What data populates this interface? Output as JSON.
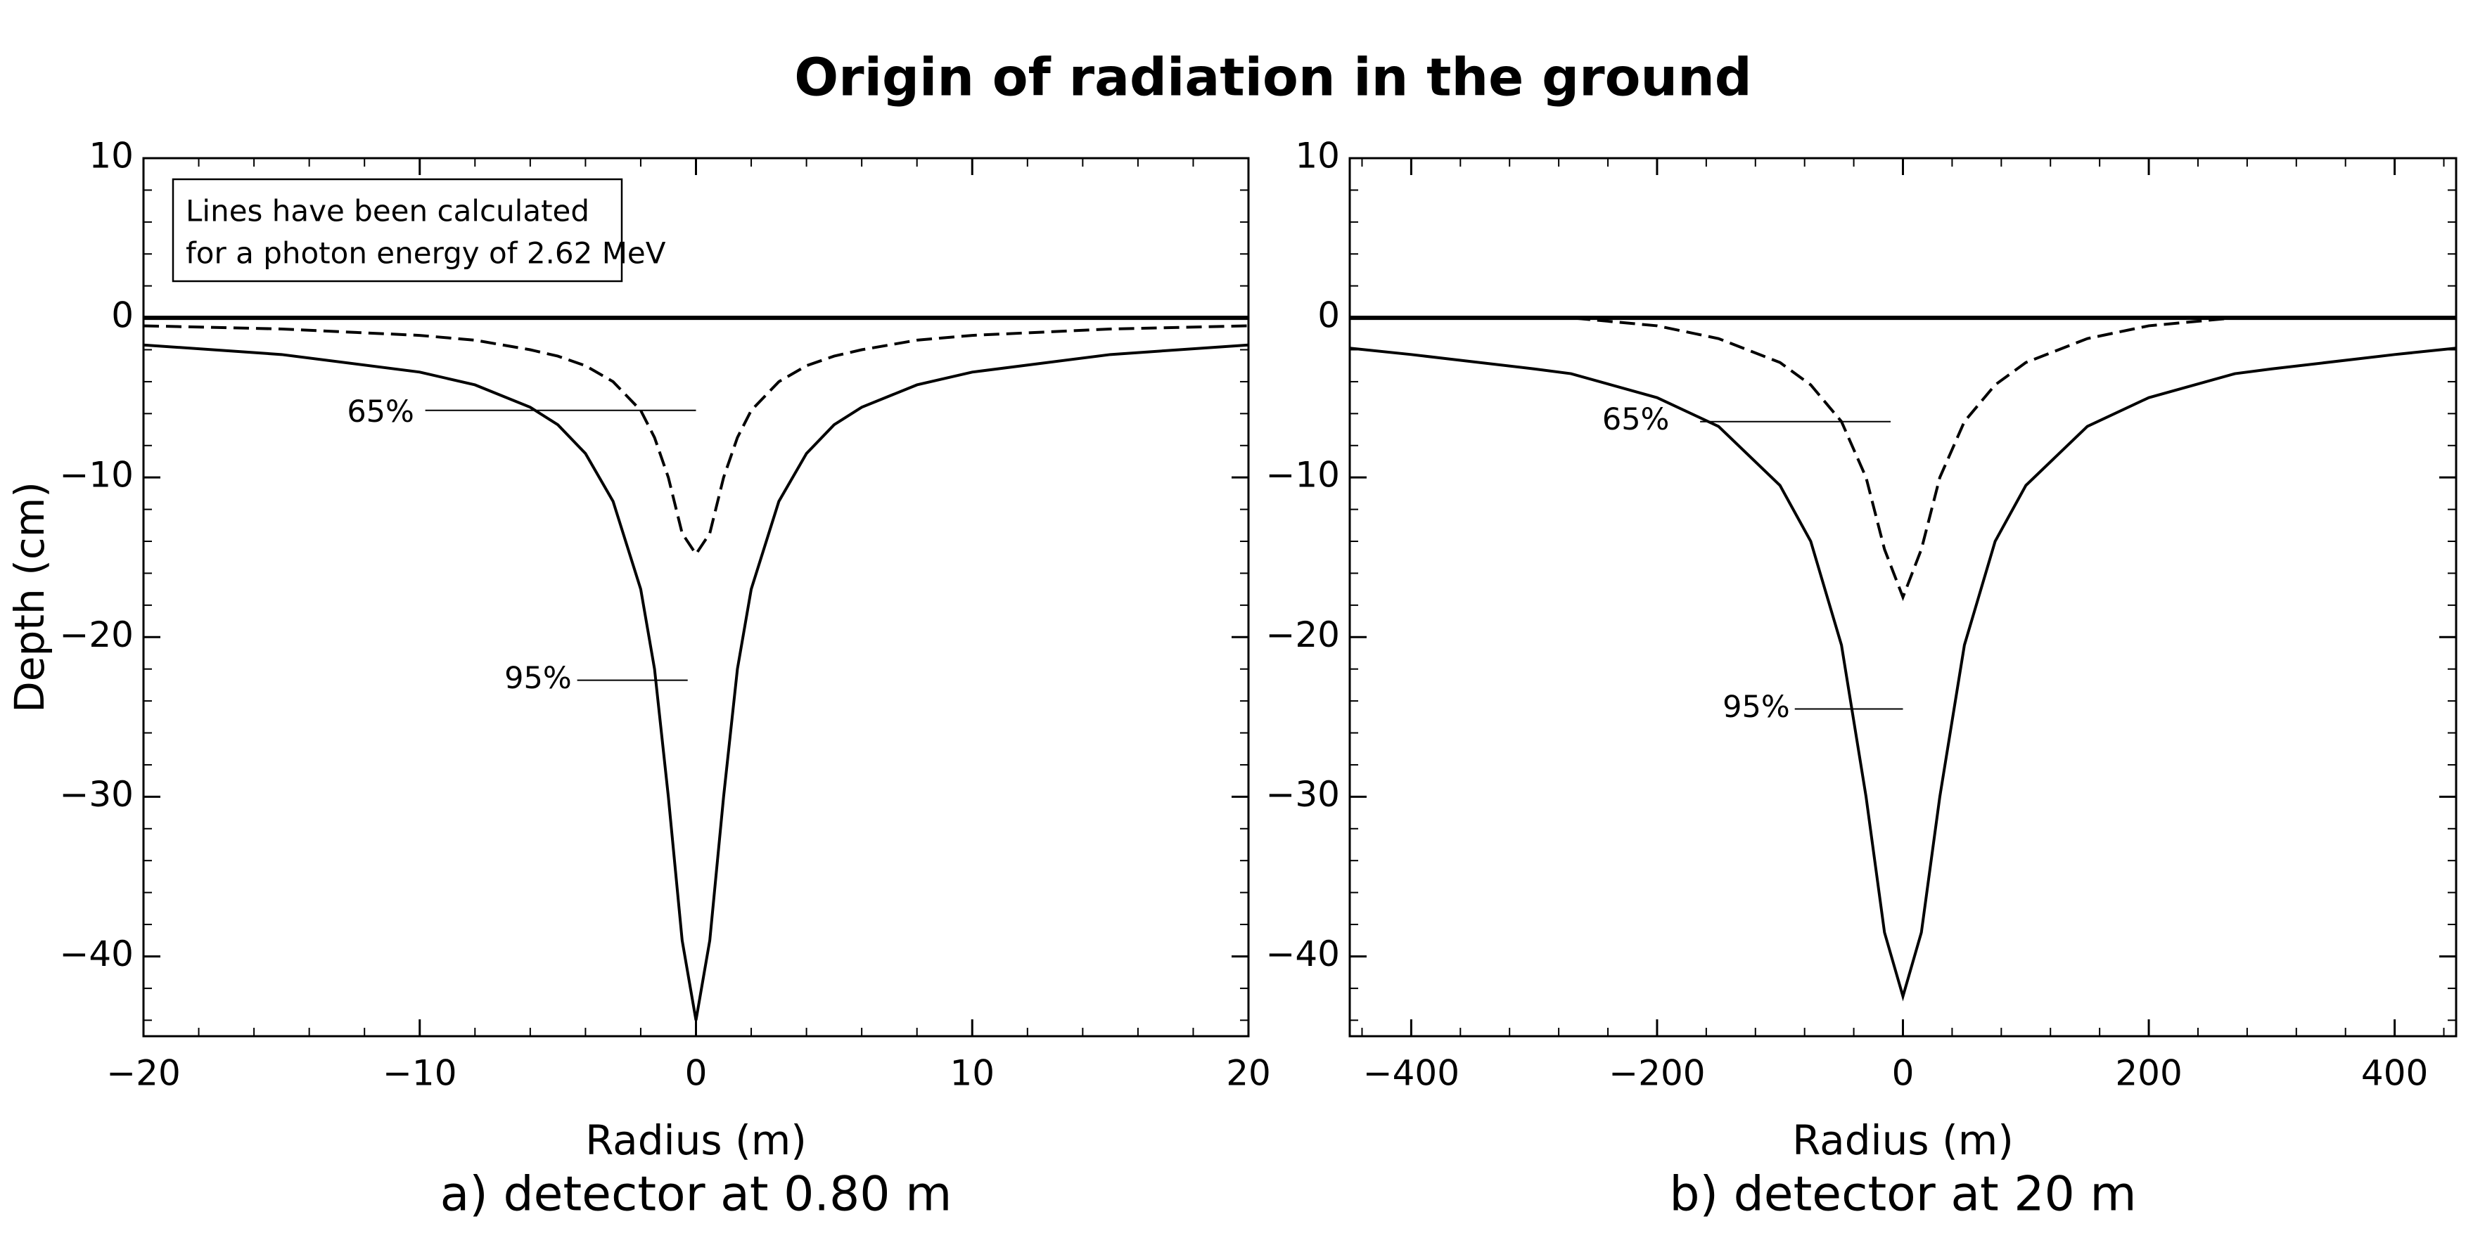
{
  "title": "Origin of radiation in the ground",
  "chart_data": [
    {
      "type": "line",
      "subtitle": "a) detector at 0.80 m",
      "xlabel": "Radius (m)",
      "ylabel": "Depth (cm)",
      "note": [
        "Lines have been calculated",
        "for a photon energy of 2.62 MeV"
      ],
      "x": [
        -20,
        -15,
        -10,
        -8,
        -6,
        -5,
        -4,
        -3,
        -2,
        -1.5,
        -1,
        -0.5,
        0,
        0.5,
        1,
        1.5,
        2,
        3,
        4,
        5,
        6,
        8,
        10,
        15,
        20
      ],
      "series": [
        {
          "name": "95%",
          "color": "#000000",
          "dash": "solid",
          "values": [
            -1.7,
            -2.3,
            -3.4,
            -4.2,
            -5.6,
            -6.7,
            -8.5,
            -11.5,
            -17,
            -22,
            -30,
            -39,
            -44,
            -39,
            -30,
            -22,
            -17,
            -11.5,
            -8.5,
            -6.7,
            -5.6,
            -4.2,
            -3.4,
            -2.3,
            -1.7
          ]
        },
        {
          "name": "65%",
          "color": "#000000",
          "dash": "dashed",
          "values": [
            -0.5,
            -0.7,
            -1.1,
            -1.4,
            -2,
            -2.4,
            -3,
            -4,
            -5.8,
            -7.5,
            -10,
            -13.5,
            -14.8,
            -13.5,
            -10,
            -7.5,
            -5.8,
            -4,
            -3,
            -2.4,
            -2,
            -1.4,
            -1.1,
            -0.7,
            -0.5
          ]
        }
      ],
      "xlim": [
        -20,
        20
      ],
      "xticks": [
        -20,
        -10,
        0,
        10,
        20
      ],
      "ylim": [
        -45,
        10
      ],
      "yticks": [
        -40,
        -30,
        -20,
        -10,
        0,
        10
      ]
    },
    {
      "type": "line",
      "subtitle": "b) detector at 20 m",
      "xlabel": "Radius (m)",
      "x": [
        -450,
        -400,
        -300,
        -270,
        -200,
        -150,
        -100,
        -75,
        -50,
        -30,
        -15,
        0,
        15,
        30,
        50,
        75,
        100,
        150,
        200,
        270,
        300,
        400,
        450
      ],
      "series": [
        {
          "name": "95%",
          "color": "#000000",
          "dash": "solid",
          "values": [
            -1.9,
            -2.3,
            -3.2,
            -3.5,
            -5,
            -6.8,
            -10.5,
            -14,
            -20.5,
            -30,
            -38.5,
            -42.5,
            -38.5,
            -30,
            -20.5,
            -14,
            -10.5,
            -6.8,
            -5,
            -3.5,
            -3.2,
            -2.3,
            -1.9
          ]
        },
        {
          "name": "65%",
          "color": "#000000",
          "dash": "dashed",
          "values": [
            0,
            0,
            0,
            0,
            -0.5,
            -1.3,
            -2.8,
            -4.2,
            -6.5,
            -10,
            -14.5,
            -17.5,
            -14.5,
            -10,
            -6.5,
            -4.2,
            -2.8,
            -1.3,
            -0.5,
            0,
            0,
            0,
            0
          ]
        }
      ],
      "xlim": [
        -450,
        450
      ],
      "xticks": [
        -400,
        -200,
        0,
        200,
        400
      ],
      "ylim": [
        -45,
        10
      ],
      "yticks": [
        -40,
        -30,
        -20,
        -10,
        0,
        10
      ]
    }
  ]
}
